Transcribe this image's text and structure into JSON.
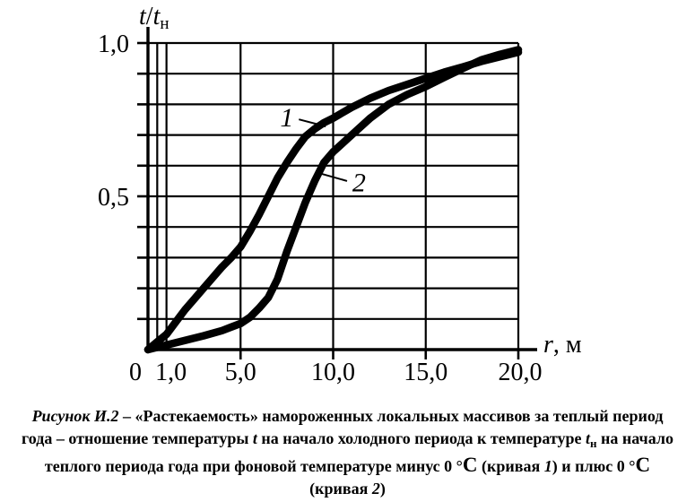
{
  "figure": {
    "caption_lines": [
      [
        {
          "t": "Рисунок И.2",
          "i": 1
        },
        {
          "t": " – «Растекаемость» намороженных локальных массивов за теплый период"
        }
      ],
      [
        {
          "t": "года – отношение температуры "
        },
        {
          "t": "t",
          "i": 1
        },
        {
          "t": " на начало холодного периода к температуре "
        },
        {
          "t": "t",
          "i": 1
        },
        {
          "t": "н",
          "sub": 1
        },
        {
          "t": " на начало"
        }
      ],
      [
        {
          "t": "теплого периода года при фоновой температуре минус 0 °"
        },
        {
          "t": "С",
          "lg": 1
        },
        {
          "t": " (кривая "
        },
        {
          "t": "1",
          "i": 1
        },
        {
          "t": ") и плюс 0 °"
        },
        {
          "t": "С",
          "lg": 1
        }
      ],
      [
        {
          "t": "(кривая "
        },
        {
          "t": "2",
          "i": 1
        },
        {
          "t": ")"
        }
      ]
    ]
  },
  "chart_data": {
    "type": "line",
    "title": "",
    "xlabel": "r, м",
    "ylabel": "t/tн",
    "xlabel_rich": [
      {
        "t": "r",
        "i": 1
      },
      {
        "t": ", м"
      }
    ],
    "ylabel_rich": [
      {
        "t": "t",
        "i": 1
      },
      {
        "t": "/"
      },
      {
        "t": "t",
        "i": 1
      },
      {
        "t": "н",
        "sub": 1
      }
    ],
    "xlim": [
      0,
      20
    ],
    "ylim": [
      0,
      1.0
    ],
    "grid": true,
    "x_gridlines": [
      0.5,
      1,
      5,
      10,
      15,
      20
    ],
    "y_gridlines": [
      0.1,
      0.2,
      0.3,
      0.4,
      0.5,
      0.6,
      0.7,
      0.8,
      0.9,
      1.0
    ],
    "x_tick_marks": [
      5,
      10,
      15,
      20
    ],
    "y_tick_marks": [
      0.1,
      0.2,
      0.3,
      0.4,
      0.5,
      0.6,
      0.7,
      0.8,
      0.9,
      1.0
    ],
    "x_ticks": [
      {
        "v": 0,
        "label": "0",
        "dx": -14
      },
      {
        "v": 1,
        "label": "1,0",
        "dx": 5
      },
      {
        "v": 5,
        "label": "5,0",
        "dx": 0
      },
      {
        "v": 10,
        "label": "10,0",
        "dx": 0
      },
      {
        "v": 15,
        "label": "15,0",
        "dx": 0
      },
      {
        "v": 20,
        "label": "20,0",
        "dx": 2
      }
    ],
    "y_ticks": [
      {
        "v": 0.5,
        "label": "0,5"
      },
      {
        "v": 1.0,
        "label": "1,0"
      }
    ],
    "series": [
      {
        "name": "1",
        "x": [
          0,
          0.5,
          1,
          1.5,
          2,
          2.5,
          3,
          3.5,
          4,
          4.5,
          5,
          5.5,
          6,
          6.5,
          7,
          7.5,
          8,
          8.5,
          9,
          9.5,
          10,
          11,
          12,
          13,
          14,
          15,
          16,
          17,
          18,
          19,
          20
        ],
        "y": [
          0,
          0.025,
          0.05,
          0.09,
          0.13,
          0.165,
          0.2,
          0.235,
          0.27,
          0.3,
          0.335,
          0.385,
          0.44,
          0.5,
          0.56,
          0.61,
          0.655,
          0.695,
          0.72,
          0.74,
          0.755,
          0.79,
          0.82,
          0.845,
          0.865,
          0.885,
          0.905,
          0.922,
          0.94,
          0.955,
          0.97
        ]
      },
      {
        "name": "2",
        "x": [
          0,
          1,
          2,
          3,
          4,
          5,
          5.5,
          6,
          6.5,
          7,
          7.5,
          8,
          8.5,
          9,
          9.5,
          10,
          11,
          12,
          13,
          14,
          15,
          16,
          17,
          18,
          19,
          20
        ],
        "y": [
          0,
          0.015,
          0.03,
          0.045,
          0.062,
          0.085,
          0.105,
          0.135,
          0.17,
          0.23,
          0.32,
          0.4,
          0.48,
          0.55,
          0.61,
          0.645,
          0.7,
          0.755,
          0.8,
          0.832,
          0.858,
          0.888,
          0.917,
          0.945,
          0.963,
          0.978
        ]
      }
    ],
    "annotations": [
      {
        "label": "1",
        "label_r": 7.5,
        "label_v": 0.757,
        "leader": [
          [
            8.15,
            0.751
          ],
          [
            9.6,
            0.728
          ]
        ]
      },
      {
        "label": "2",
        "label_r": 11.4,
        "label_v": 0.545,
        "leader": [
          [
            9.4,
            0.573
          ],
          [
            10.75,
            0.55
          ]
        ]
      }
    ],
    "line_color": "#000000",
    "line_width": 8.5,
    "legend_position": "none"
  }
}
